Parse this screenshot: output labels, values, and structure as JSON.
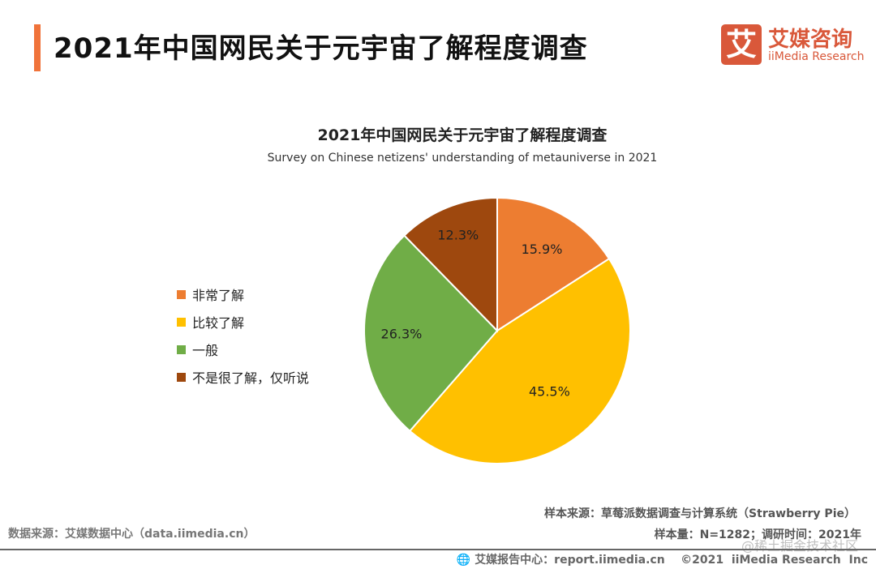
{
  "header": {
    "title": "2021年中国网民关于元宇宙了解程度调查",
    "logo_mark": "艾",
    "logo_cn": "艾媒咨询",
    "logo_en": "iiMedia Research",
    "accent": "#f0733a"
  },
  "chart_data": {
    "type": "pie",
    "title": "2021年中国网民关于元宇宙了解程度调查",
    "subtitle": "Survey on Chinese netizens' understanding of metauniverse in 2021",
    "start": "top",
    "direction": "clockwise",
    "legend_position": "left",
    "slices": [
      {
        "label": "非常了解",
        "value": 15.9,
        "display": "15.9%",
        "color": "#ED7D31"
      },
      {
        "label": "比较了解",
        "value": 45.5,
        "display": "45.5%",
        "color": "#FFC000"
      },
      {
        "label": "一般",
        "value": 26.3,
        "display": "26.3%",
        "color": "#70AD47"
      },
      {
        "label": "不是很了解，仅听说",
        "value": 12.3,
        "display": "12.3%",
        "color": "#9E480E"
      }
    ]
  },
  "footer": {
    "source_left": "数据来源：艾媒数据中心（data.iimedia.cn）",
    "source_right": "样本来源：草莓派数据调查与计算系统（Strawberry Pie）",
    "sample": "样本量：N=1282；调研时间：2021年",
    "report": "艾媒报告中心：report.iimedia.cn    ©2021  iiMedia Research  Inc",
    "watermark": "@稀土掘金技术社区"
  }
}
